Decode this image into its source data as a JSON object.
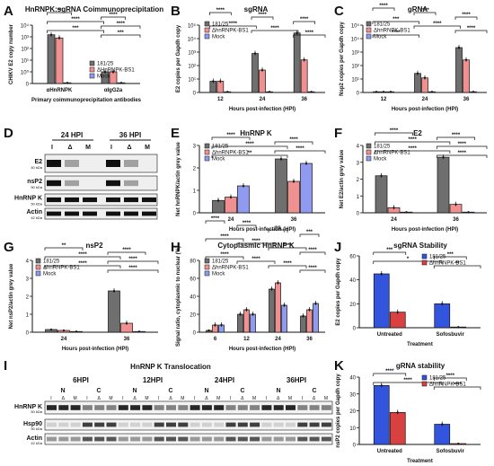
{
  "colors": {
    "grey": "#6f6f6f",
    "red": "#d94040",
    "blue": "#3355dd",
    "lightblue": "#8f9af0",
    "pink": "#f09090",
    "text": "#111111"
  },
  "panel_letters": [
    "A",
    "B",
    "C",
    "D",
    "E",
    "F",
    "G",
    "H",
    "I",
    "J",
    "K"
  ],
  "panelA": {
    "title": "HnRNPK:sgRNA Coimmunoprecipitation",
    "ylabel": "CHIKV E2 copy number",
    "xlabel": "Primary coimmunoprecipitation antibodies",
    "yticks": [
      "10⁴",
      "10³",
      "10²",
      "10¹",
      "10⁰",
      "0"
    ],
    "categories": [
      "αHnRNPK",
      "αIgG2a"
    ],
    "legend": [
      "181/25",
      "ΔHnRNPK-BS1",
      "Mock"
    ],
    "sig": [
      "**",
      "****",
      "****",
      "****",
      "***",
      "***"
    ]
  },
  "panelB": {
    "title": "sgRNA",
    "ylabel": "E2 copies per Gapdh copy",
    "xlabel": "Hours post-infection (HPI)",
    "yticks": [
      "10⁵",
      "10⁴",
      "10³",
      "10²",
      "10¹",
      "0"
    ],
    "categories": [
      "12",
      "24",
      "36"
    ],
    "legend": [
      "181/25",
      "ΔhnRNPK-BS1",
      "Mock"
    ],
    "sig": [
      "****",
      "****",
      "****",
      "****",
      "****",
      "****"
    ]
  },
  "panelC": {
    "title": "gRNA",
    "ylabel": "Nsp2 copies per Gapdh copy",
    "xlabel": "Hours post-infection (HPI)",
    "yticks": [
      "10⁵",
      "10⁴",
      "10³",
      "10²",
      "10¹",
      "0"
    ],
    "categories": [
      "12",
      "24",
      "36"
    ],
    "legend": [
      "181/25",
      "ΔhnRNPK-BS1",
      "Mock"
    ],
    "sig": [
      "****",
      "****",
      "****",
      "***",
      "****",
      "****",
      "****"
    ]
  },
  "panelD": {
    "col_heads": [
      "24 HPI",
      "36 HPI"
    ],
    "lane_labels": [
      "I",
      "Δ",
      "M",
      "I",
      "Δ",
      "M"
    ],
    "rows": [
      {
        "name": "E2",
        "kda": "40 kDa"
      },
      {
        "name": "nsP2",
        "kda": "90 kDa"
      },
      {
        "name": "HnRNP K",
        "kda": "50 kDa"
      },
      {
        "name": "Actin",
        "kda": "42 kDa"
      }
    ]
  },
  "panelE": {
    "title": "HnRNP K",
    "ylabel": "Net hnRNPK/actin grey value",
    "xlabel": "Hours post-infection (HPI)",
    "yticks": [
      "3",
      "2",
      "1",
      "0"
    ],
    "categories": [
      "24",
      "36"
    ],
    "legend": [
      "181/25",
      "ΔhnRNPK-BS1",
      "Mock"
    ],
    "sig": [
      "****",
      "****",
      "****",
      "****",
      "**"
    ]
  },
  "panelF": {
    "title": "E2",
    "ylabel": "Net E2/actin grey value",
    "xlabel": "Hours post-infection (HPI)",
    "yticks": [
      "4",
      "3",
      "2",
      "1",
      "0"
    ],
    "categories": [
      "24",
      "36"
    ],
    "legend": [
      "181/25",
      "ΔhnRNPK-BS1",
      "Mock"
    ],
    "sig": [
      "****",
      "****",
      "****",
      "****",
      "****",
      "****"
    ]
  },
  "panelG": {
    "title": "nsP2",
    "ylabel": "Net nsP2/actin grey value",
    "xlabel": "Hours post-infection (HPI)",
    "yticks": [
      "4",
      "3",
      "2",
      "1",
      "0"
    ],
    "categories": [
      "24",
      "36"
    ],
    "legend": [
      "181/25",
      "ΔhnRNPK-BS1",
      "Mock"
    ],
    "sig": [
      "**",
      "****",
      "****",
      "****",
      "****",
      "****"
    ]
  },
  "panelH": {
    "title": "Cytoplasmic HnRNP K",
    "ylabel": "Signal ratio, cytoplasmic to nuclear (%)",
    "xlabel": "Hours post-infection (HPI)",
    "yticks": [
      "80",
      "60",
      "40",
      "20",
      "0"
    ],
    "categories": [
      "6",
      "12",
      "24",
      "36"
    ],
    "legend": [
      "181/25",
      "ΔhnRNPK-BS1",
      "Mock"
    ],
    "sig": [
      "****",
      "****",
      "ns",
      "***",
      "****",
      "****",
      "****",
      "****",
      "****",
      "****",
      "****",
      "****"
    ]
  },
  "panelI": {
    "title": "HnRNP K Translocation",
    "time_heads": [
      "6HPI",
      "12HPI",
      "24HPI",
      "36HPI"
    ],
    "fraction_heads": [
      "N",
      "C",
      "N",
      "C",
      "N",
      "C",
      "N",
      "C"
    ],
    "lane_labels": [
      "I",
      "Δ",
      "M",
      "I",
      "Δ",
      "M",
      "I",
      "Δ",
      "M",
      "I",
      "Δ",
      "M",
      "I",
      "Δ",
      "M",
      "I",
      "Δ",
      "M",
      "I",
      "Δ",
      "M",
      "I",
      "Δ",
      "M"
    ],
    "rows": [
      {
        "name": "HnRNP K",
        "kda": "50 kDa"
      },
      {
        "name": "Hsp90",
        "kda": "90 kDa"
      },
      {
        "name": "Actin",
        "kda": "42 kDa"
      }
    ]
  },
  "panelJ": {
    "title": "sgRNA Stability",
    "ylabel": "E2 copies per Gapdh copy",
    "xlabel": "Treatment",
    "yticks": [
      "60",
      "40",
      "20",
      "0"
    ],
    "categories": [
      "Untreated",
      "Sofosbuvir"
    ],
    "legend": [
      "181/25",
      "ΔhnRNPK-BS1"
    ],
    "sig": [
      "***",
      "***",
      "*",
      "**"
    ]
  },
  "panelK": {
    "title": "gRNA stability",
    "ylabel": "nsP2 copies per Gapdh copy",
    "xlabel": "Treatment",
    "yticks": [
      "40",
      "30",
      "20",
      "10",
      "0"
    ],
    "categories": [
      "Untreated",
      "Sofosbuvir"
    ],
    "legend": [
      "181/25",
      "ΔhnRNPK-BS1"
    ],
    "sig": [
      "****",
      "****",
      "****",
      "****"
    ]
  },
  "chart_data": [
    {
      "panel": "A",
      "type": "bar",
      "categories": [
        "αHnRNPK",
        "αIgG2a"
      ],
      "yscale": "log",
      "ylim": [
        0,
        10000
      ],
      "series": [
        {
          "name": "181/25",
          "values": [
            1500,
            1
          ]
        },
        {
          "name": "ΔHnRNPK-BS1",
          "values": [
            800,
            1
          ]
        },
        {
          "name": "Mock",
          "values": [
            0,
            0
          ]
        }
      ]
    },
    {
      "panel": "B",
      "type": "bar",
      "categories": [
        "12",
        "24",
        "36"
      ],
      "yscale": "log",
      "ylim": [
        0,
        100000
      ],
      "series": [
        {
          "name": "181/25",
          "values": [
            1,
            300,
            20000
          ]
        },
        {
          "name": "ΔhnRNPK-BS1",
          "values": [
            1,
            10,
            80
          ]
        },
        {
          "name": "Mock",
          "values": [
            0,
            0,
            0
          ]
        }
      ]
    },
    {
      "panel": "C",
      "type": "bar",
      "categories": [
        "12",
        "24",
        "36"
      ],
      "yscale": "log",
      "ylim": [
        0,
        100000
      ],
      "series": [
        {
          "name": "181/25",
          "values": [
            0,
            5,
            1000
          ]
        },
        {
          "name": "ΔhnRNPK-BS1",
          "values": [
            0,
            2,
            80
          ]
        },
        {
          "name": "Mock",
          "values": [
            0,
            0,
            0
          ]
        }
      ]
    },
    {
      "panel": "E",
      "type": "bar",
      "categories": [
        "24",
        "36"
      ],
      "ylim": [
        0,
        3
      ],
      "series": [
        {
          "name": "181/25",
          "values": [
            0.55,
            2.4
          ]
        },
        {
          "name": "ΔhnRNPK-BS1",
          "values": [
            0.7,
            1.4
          ]
        },
        {
          "name": "Mock",
          "values": [
            1.2,
            2.2
          ]
        }
      ]
    },
    {
      "panel": "F",
      "type": "bar",
      "categories": [
        "24",
        "36"
      ],
      "ylim": [
        0,
        4
      ],
      "series": [
        {
          "name": "181/25",
          "values": [
            2.2,
            3.3
          ]
        },
        {
          "name": "ΔhnRNPK-BS1",
          "values": [
            0.3,
            0.5
          ]
        },
        {
          "name": "Mock",
          "values": [
            0,
            0
          ]
        }
      ]
    },
    {
      "panel": "G",
      "type": "bar",
      "categories": [
        "24",
        "36"
      ],
      "ylim": [
        0,
        4
      ],
      "series": [
        {
          "name": "181/25",
          "values": [
            0.15,
            2.3
          ]
        },
        {
          "name": "ΔhnRNPK-BS1",
          "values": [
            0.1,
            0.5
          ]
        },
        {
          "name": "Mock",
          "values": [
            0,
            0
          ]
        }
      ]
    },
    {
      "panel": "H",
      "type": "bar",
      "categories": [
        "6",
        "12",
        "24",
        "36"
      ],
      "ylim": [
        0,
        80
      ],
      "series": [
        {
          "name": "181/25",
          "values": [
            2,
            20,
            48,
            18
          ]
        },
        {
          "name": "ΔhnRNPK-BS1",
          "values": [
            8,
            25,
            55,
            25
          ]
        },
        {
          "name": "Mock",
          "values": [
            8,
            20,
            30,
            32
          ]
        }
      ]
    },
    {
      "panel": "J",
      "type": "bar",
      "categories": [
        "Untreated",
        "Sofosbuvir"
      ],
      "ylim": [
        0,
        60
      ],
      "series": [
        {
          "name": "181/25",
          "values": [
            45,
            20
          ]
        },
        {
          "name": "ΔhnRNPK-BS1",
          "values": [
            13,
            0.5
          ]
        }
      ]
    },
    {
      "panel": "K",
      "type": "bar",
      "categories": [
        "Untreated",
        "Sofosbuvir"
      ],
      "ylim": [
        0,
        40
      ],
      "series": [
        {
          "name": "181/25",
          "values": [
            35,
            12
          ]
        },
        {
          "name": "ΔhnRNPK-BS1",
          "values": [
            19,
            0.5
          ]
        }
      ]
    }
  ]
}
